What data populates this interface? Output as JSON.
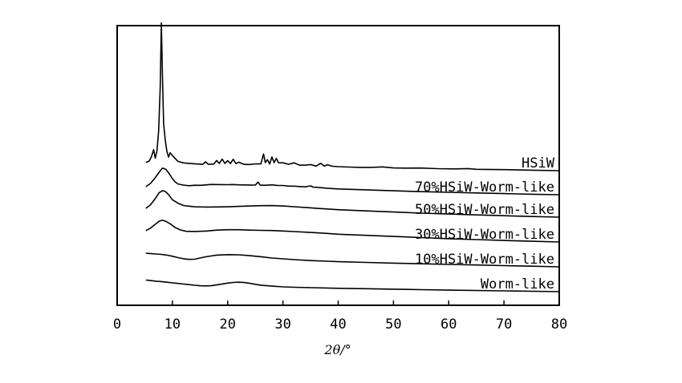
{
  "chart_data": {
    "type": "line",
    "xlabel": "2θ/°",
    "xlim": [
      0,
      80
    ],
    "xticks": [
      0,
      10,
      20,
      30,
      40,
      50,
      60,
      70,
      80
    ],
    "grid": false,
    "y_ticks_shown": false,
    "series": [
      {
        "name": "HSiW",
        "points": [
          [
            5.2,
            0.02
          ],
          [
            5.8,
            0.03
          ],
          [
            6.2,
            0.06
          ],
          [
            6.6,
            0.11
          ],
          [
            6.9,
            0.05
          ],
          [
            7.2,
            0.1
          ],
          [
            7.5,
            0.24
          ],
          [
            7.8,
            0.55
          ],
          [
            8.0,
            1.0
          ],
          [
            8.2,
            0.62
          ],
          [
            8.4,
            0.3
          ],
          [
            8.7,
            0.18
          ],
          [
            9.0,
            0.1
          ],
          [
            9.3,
            0.06
          ],
          [
            9.6,
            0.09
          ],
          [
            10.0,
            0.07
          ],
          [
            10.5,
            0.05
          ],
          [
            11,
            0.03
          ],
          [
            12,
            0.02
          ],
          [
            14,
            0.015
          ],
          [
            15.5,
            0.012
          ],
          [
            16,
            0.03
          ],
          [
            16.5,
            0.012
          ],
          [
            17.5,
            0.015
          ],
          [
            18,
            0.04
          ],
          [
            18.5,
            0.02
          ],
          [
            19,
            0.05
          ],
          [
            19.5,
            0.02
          ],
          [
            20,
            0.04
          ],
          [
            20.5,
            0.02
          ],
          [
            21,
            0.05
          ],
          [
            21.5,
            0.02
          ],
          [
            22,
            0.03
          ],
          [
            23,
            0.015
          ],
          [
            24,
            0.015
          ],
          [
            25,
            0.02
          ],
          [
            26,
            0.02
          ],
          [
            26.5,
            0.09
          ],
          [
            26.8,
            0.03
          ],
          [
            27.2,
            0.05
          ],
          [
            27.6,
            0.02
          ],
          [
            28,
            0.07
          ],
          [
            28.4,
            0.03
          ],
          [
            28.8,
            0.06
          ],
          [
            29.2,
            0.03
          ],
          [
            30,
            0.03
          ],
          [
            31,
            0.02
          ],
          [
            32,
            0.03
          ],
          [
            33,
            0.015
          ],
          [
            34,
            0.015
          ],
          [
            35,
            0.02
          ],
          [
            36,
            0.01
          ],
          [
            36.8,
            0.03
          ],
          [
            37.5,
            0.01
          ],
          [
            38,
            0.02
          ],
          [
            39,
            0.01
          ],
          [
            40,
            0.008
          ],
          [
            42,
            0.006
          ],
          [
            44,
            0.005
          ],
          [
            46,
            0.006
          ],
          [
            48,
            0.01
          ],
          [
            50,
            0.004
          ],
          [
            52,
            0.004
          ],
          [
            55,
            0.006
          ],
          [
            58,
            0.003
          ],
          [
            61,
            0.003
          ],
          [
            63.5,
            0.006
          ],
          [
            65,
            0.002
          ],
          [
            70,
            0.002
          ],
          [
            75,
            0.001
          ],
          [
            80,
            0.0
          ]
        ]
      },
      {
        "name": "70%HSiW-Worm-like",
        "points": [
          [
            5.2,
            0.02
          ],
          [
            6,
            0.05
          ],
          [
            6.8,
            0.1
          ],
          [
            7.6,
            0.16
          ],
          [
            8.2,
            0.2
          ],
          [
            8.8,
            0.19
          ],
          [
            9.4,
            0.15
          ],
          [
            10,
            0.1
          ],
          [
            10.5,
            0.07
          ],
          [
            11,
            0.05
          ],
          [
            12,
            0.04
          ],
          [
            13,
            0.035
          ],
          [
            14,
            0.04
          ],
          [
            15,
            0.04
          ],
          [
            16,
            0.045
          ],
          [
            17,
            0.05
          ],
          [
            18,
            0.05
          ],
          [
            19,
            0.05
          ],
          [
            20,
            0.05
          ],
          [
            21,
            0.052
          ],
          [
            22,
            0.05
          ],
          [
            23,
            0.05
          ],
          [
            24,
            0.05
          ],
          [
            25,
            0.05
          ],
          [
            25.5,
            0.08
          ],
          [
            25.9,
            0.05
          ],
          [
            26.5,
            0.05
          ],
          [
            27,
            0.05
          ],
          [
            28,
            0.055
          ],
          [
            29,
            0.05
          ],
          [
            30,
            0.05
          ],
          [
            31,
            0.045
          ],
          [
            32,
            0.045
          ],
          [
            33,
            0.042
          ],
          [
            34,
            0.04
          ],
          [
            35,
            0.05
          ],
          [
            35.5,
            0.038
          ],
          [
            36,
            0.038
          ],
          [
            38,
            0.03
          ],
          [
            40,
            0.025
          ],
          [
            45,
            0.02
          ],
          [
            50,
            0.015
          ],
          [
            55,
            0.01
          ],
          [
            60,
            0.008
          ],
          [
            65,
            0.005
          ],
          [
            70,
            0.003
          ],
          [
            75,
            0.001
          ],
          [
            80,
            0.0
          ]
        ]
      },
      {
        "name": "50%HSiW-Worm-like",
        "points": [
          [
            5.2,
            0.02
          ],
          [
            6,
            0.05
          ],
          [
            6.8,
            0.1
          ],
          [
            7.6,
            0.16
          ],
          [
            8.2,
            0.18
          ],
          [
            8.8,
            0.17
          ],
          [
            9.4,
            0.14
          ],
          [
            10,
            0.1
          ],
          [
            11,
            0.07
          ],
          [
            12,
            0.05
          ],
          [
            13,
            0.045
          ],
          [
            14,
            0.04
          ],
          [
            16,
            0.04
          ],
          [
            18,
            0.042
          ],
          [
            20,
            0.045
          ],
          [
            22,
            0.05
          ],
          [
            24,
            0.055
          ],
          [
            26,
            0.06
          ],
          [
            28,
            0.062
          ],
          [
            30,
            0.06
          ],
          [
            32,
            0.055
          ],
          [
            34,
            0.05
          ],
          [
            36,
            0.045
          ],
          [
            38,
            0.04
          ],
          [
            40,
            0.035
          ],
          [
            45,
            0.028
          ],
          [
            50,
            0.022
          ],
          [
            55,
            0.016
          ],
          [
            60,
            0.012
          ],
          [
            65,
            0.008
          ],
          [
            70,
            0.005
          ],
          [
            75,
            0.002
          ],
          [
            80,
            0.0
          ]
        ]
      },
      {
        "name": "30%HSiW-Worm-like",
        "points": [
          [
            5.2,
            0.03
          ],
          [
            6,
            0.05
          ],
          [
            6.8,
            0.08
          ],
          [
            7.6,
            0.11
          ],
          [
            8.2,
            0.12
          ],
          [
            8.8,
            0.11
          ],
          [
            9.6,
            0.09
          ],
          [
            10.5,
            0.06
          ],
          [
            11.5,
            0.04
          ],
          [
            12.5,
            0.03
          ],
          [
            14,
            0.03
          ],
          [
            16,
            0.035
          ],
          [
            18,
            0.045
          ],
          [
            20,
            0.05
          ],
          [
            22,
            0.052
          ],
          [
            24,
            0.05
          ],
          [
            26,
            0.05
          ],
          [
            28,
            0.05
          ],
          [
            30,
            0.048
          ],
          [
            32,
            0.045
          ],
          [
            35,
            0.04
          ],
          [
            38,
            0.035
          ],
          [
            40,
            0.03
          ],
          [
            45,
            0.025
          ],
          [
            50,
            0.02
          ],
          [
            55,
            0.015
          ],
          [
            60,
            0.01
          ],
          [
            65,
            0.007
          ],
          [
            70,
            0.004
          ],
          [
            75,
            0.002
          ],
          [
            80,
            0.0
          ]
        ]
      },
      {
        "name": "10%HSiW-Worm-like",
        "points": [
          [
            5.2,
            0.05
          ],
          [
            6,
            0.048
          ],
          [
            7,
            0.045
          ],
          [
            8,
            0.043
          ],
          [
            9,
            0.038
          ],
          [
            10,
            0.03
          ],
          [
            11,
            0.02
          ],
          [
            12,
            0.012
          ],
          [
            13,
            0.008
          ],
          [
            14,
            0.01
          ],
          [
            15,
            0.02
          ],
          [
            16,
            0.03
          ],
          [
            18,
            0.045
          ],
          [
            20,
            0.05
          ],
          [
            22,
            0.05
          ],
          [
            24,
            0.045
          ],
          [
            26,
            0.038
          ],
          [
            28,
            0.03
          ],
          [
            30,
            0.025
          ],
          [
            32,
            0.02
          ],
          [
            35,
            0.015
          ],
          [
            38,
            0.012
          ],
          [
            40,
            0.01
          ],
          [
            45,
            0.008
          ],
          [
            50,
            0.006
          ],
          [
            55,
            0.005
          ],
          [
            60,
            0.004
          ],
          [
            65,
            0.003
          ],
          [
            70,
            0.002
          ],
          [
            75,
            0.001
          ],
          [
            80,
            0.0
          ]
        ]
      },
      {
        "name": "Worm-like",
        "points": [
          [
            5.2,
            0.05
          ],
          [
            6,
            0.047
          ],
          [
            7,
            0.043
          ],
          [
            8,
            0.04
          ],
          [
            9,
            0.036
          ],
          [
            10,
            0.032
          ],
          [
            11,
            0.028
          ],
          [
            12,
            0.024
          ],
          [
            13,
            0.02
          ],
          [
            14,
            0.016
          ],
          [
            15,
            0.013
          ],
          [
            16,
            0.012
          ],
          [
            17,
            0.014
          ],
          [
            18,
            0.02
          ],
          [
            19,
            0.028
          ],
          [
            20,
            0.035
          ],
          [
            21,
            0.04
          ],
          [
            22,
            0.042
          ],
          [
            23,
            0.04
          ],
          [
            24,
            0.035
          ],
          [
            25,
            0.028
          ],
          [
            26,
            0.022
          ],
          [
            28,
            0.016
          ],
          [
            30,
            0.012
          ],
          [
            32,
            0.01
          ],
          [
            35,
            0.008
          ],
          [
            40,
            0.006
          ],
          [
            45,
            0.005
          ],
          [
            50,
            0.004
          ],
          [
            55,
            0.003
          ],
          [
            60,
            0.002
          ],
          [
            70,
            0.001
          ],
          [
            80,
            0.0
          ]
        ]
      }
    ]
  }
}
